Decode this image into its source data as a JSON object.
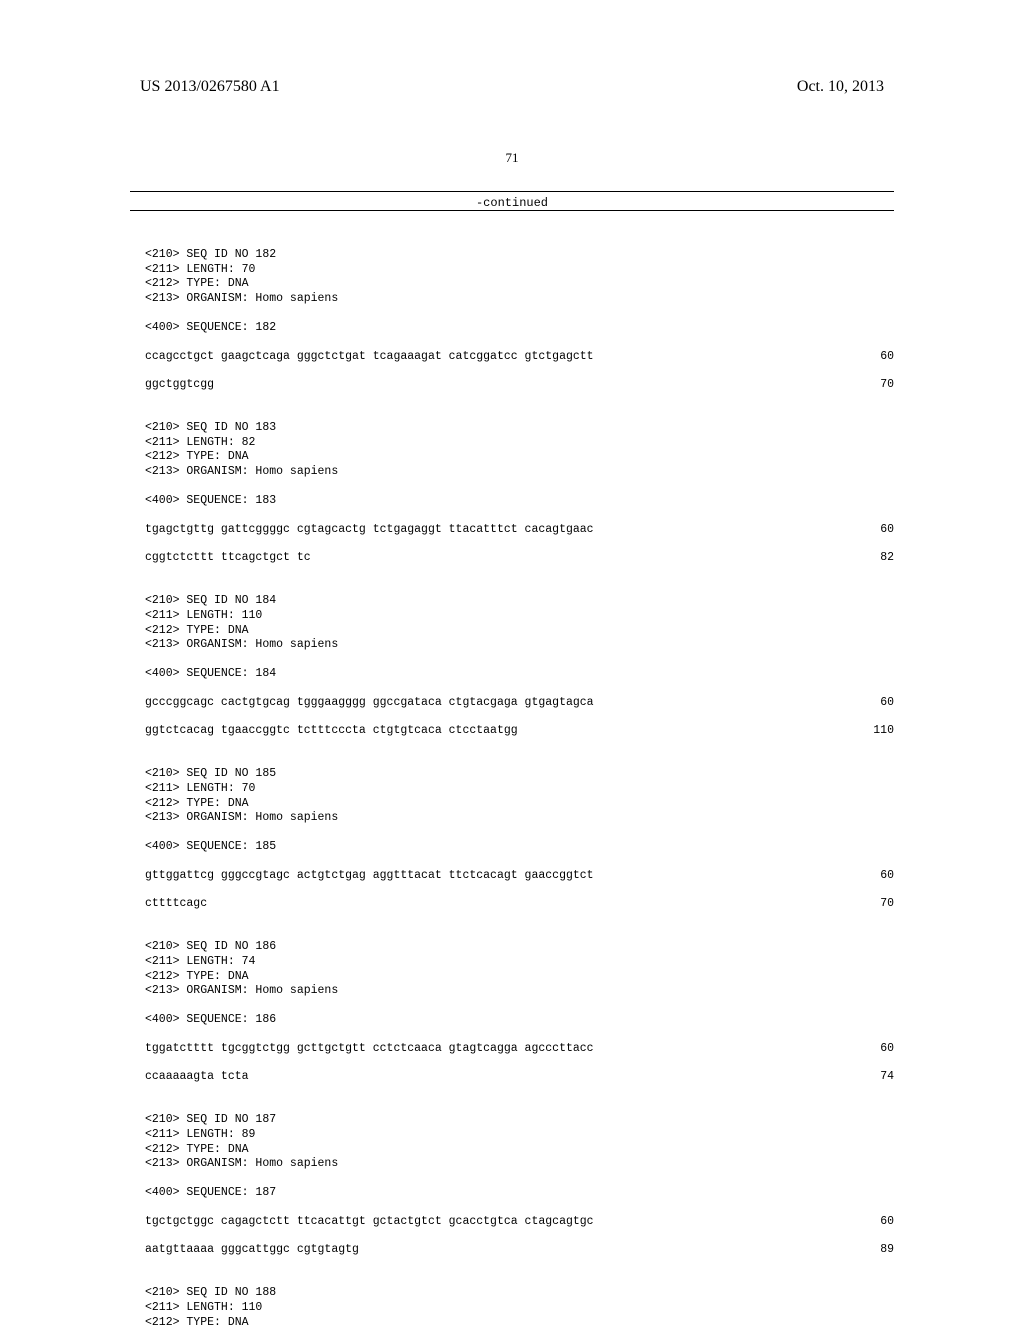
{
  "header": {
    "doc_id": "US 2013/0267580 A1",
    "date": "Oct. 10, 2013"
  },
  "page_number": "71",
  "continued_label": "-continued",
  "sequences": [
    {
      "meta": [
        "<210> SEQ ID NO 182",
        "<211> LENGTH: 70",
        "<212> TYPE: DNA",
        "<213> ORGANISM: Homo sapiens"
      ],
      "seq_label": "<400> SEQUENCE: 182",
      "lines": [
        {
          "seq": "ccagcctgct gaagctcaga gggctctgat tcagaaagat catcggatcc gtctgagctt",
          "num": "60"
        },
        {
          "seq": "ggctggtcgg",
          "num": "70"
        }
      ]
    },
    {
      "meta": [
        "<210> SEQ ID NO 183",
        "<211> LENGTH: 82",
        "<212> TYPE: DNA",
        "<213> ORGANISM: Homo sapiens"
      ],
      "seq_label": "<400> SEQUENCE: 183",
      "lines": [
        {
          "seq": "tgagctgttg gattcggggc cgtagcactg tctgagaggt ttacatttct cacagtgaac",
          "num": "60"
        },
        {
          "seq": "cggtctcttt ttcagctgct tc",
          "num": "82"
        }
      ]
    },
    {
      "meta": [
        "<210> SEQ ID NO 184",
        "<211> LENGTH: 110",
        "<212> TYPE: DNA",
        "<213> ORGANISM: Homo sapiens"
      ],
      "seq_label": "<400> SEQUENCE: 184",
      "lines": [
        {
          "seq": "gcccggcagc cactgtgcag tgggaagggg ggccgataca ctgtacgaga gtgagtagca",
          "num": "60"
        },
        {
          "seq": "ggtctcacag tgaaccggtc tctttcccta ctgtgtcaca ctcctaatgg",
          "num": "110"
        }
      ]
    },
    {
      "meta": [
        "<210> SEQ ID NO 185",
        "<211> LENGTH: 70",
        "<212> TYPE: DNA",
        "<213> ORGANISM: Homo sapiens"
      ],
      "seq_label": "<400> SEQUENCE: 185",
      "lines": [
        {
          "seq": "gttggattcg gggccgtagc actgtctgag aggtttacat ttctcacagt gaaccggtct",
          "num": "60"
        },
        {
          "seq": "cttttcagc",
          "num": "70"
        }
      ]
    },
    {
      "meta": [
        "<210> SEQ ID NO 186",
        "<211> LENGTH: 74",
        "<212> TYPE: DNA",
        "<213> ORGANISM: Homo sapiens"
      ],
      "seq_label": "<400> SEQUENCE: 186",
      "lines": [
        {
          "seq": "tggatctttt tgcggtctgg gcttgctgtt cctctcaaca gtagtcagga agcccttacc",
          "num": "60"
        },
        {
          "seq": "ccaaaaagta tcta",
          "num": "74"
        }
      ]
    },
    {
      "meta": [
        "<210> SEQ ID NO 187",
        "<211> LENGTH: 89",
        "<212> TYPE: DNA",
        "<213> ORGANISM: Homo sapiens"
      ],
      "seq_label": "<400> SEQUENCE: 187",
      "lines": [
        {
          "seq": "tgctgctggc cagagctctt ttcacattgt gctactgtct gcacctgtca ctagcagtgc",
          "num": "60"
        },
        {
          "seq": "aatgttaaaa gggcattggc cgtgtagtg",
          "num": "89"
        }
      ]
    },
    {
      "meta": [
        "<210> SEQ ID NO 188",
        "<211> LENGTH: 110",
        "<212> TYPE: DNA"
      ],
      "seq_label": null,
      "lines": []
    }
  ]
}
